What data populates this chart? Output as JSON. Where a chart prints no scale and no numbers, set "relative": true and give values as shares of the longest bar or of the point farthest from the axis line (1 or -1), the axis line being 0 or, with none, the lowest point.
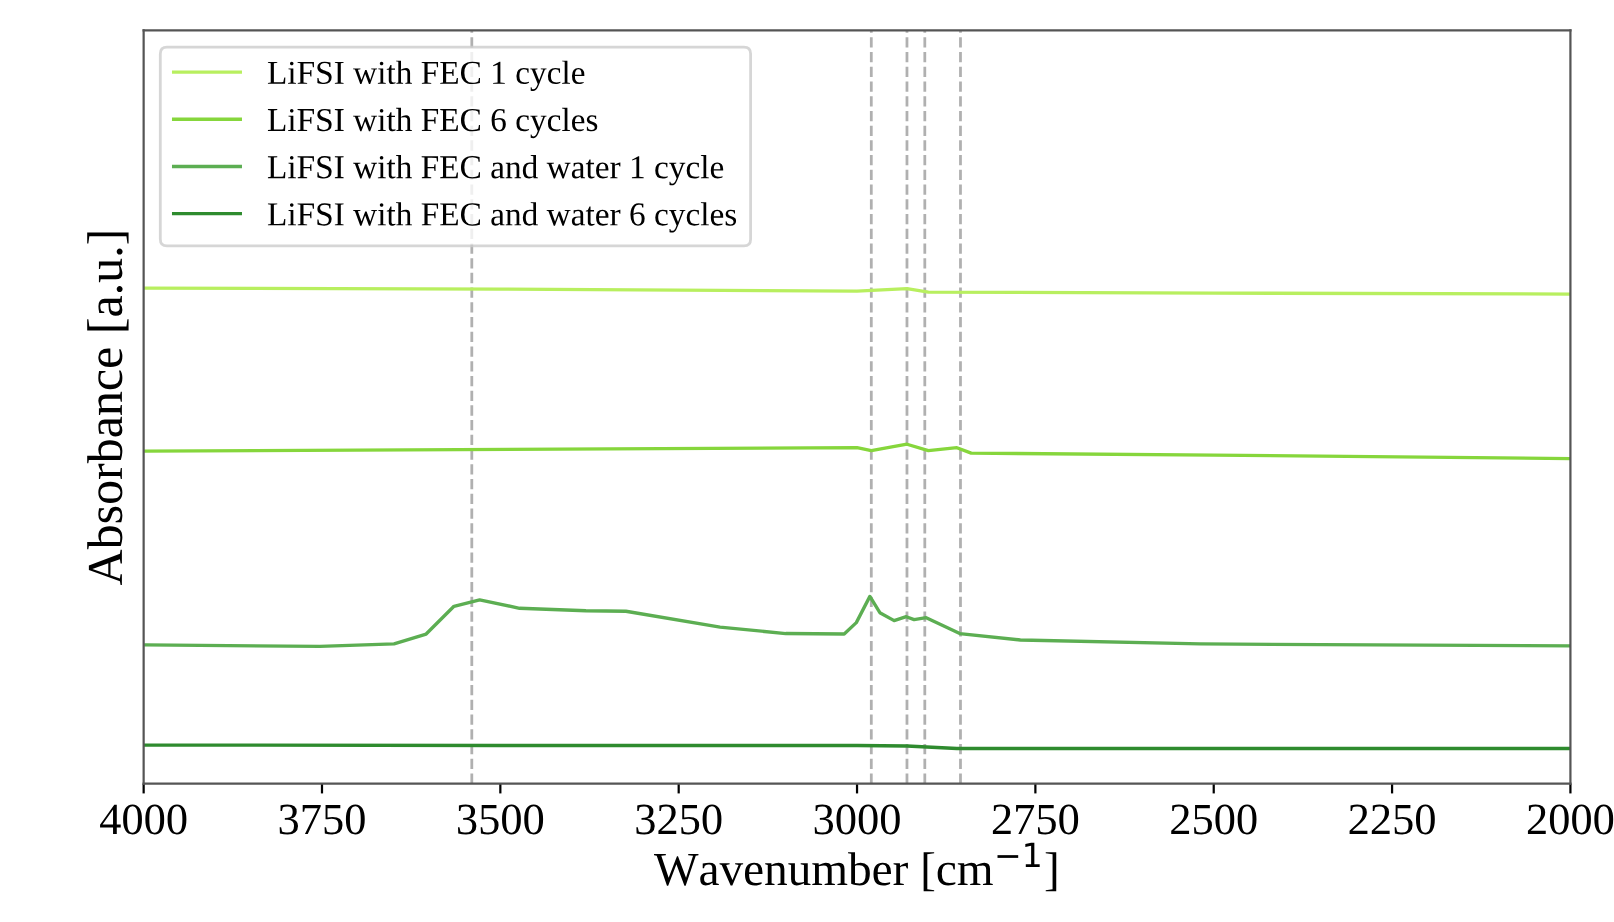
{
  "chart_data": {
    "type": "line",
    "relative": true,
    "xlabel": "Wavenumber [cm$^{−1}$]",
    "ylabel": "Absorbance [a.u.]",
    "xlim": [
      4000,
      2000
    ],
    "xticks": [
      4000,
      3750,
      3500,
      3250,
      3000,
      2750,
      2500,
      2250,
      2000
    ],
    "legend": "top left",
    "grid": false,
    "line_style": "solid",
    "marker": "none",
    "series": [
      {
        "name": "LiFSI with FEC 1 cycle",
        "color": "#b8ef5f",
        "x": [
          4000,
          3500,
          3000,
          2930,
          2900,
          2500,
          2000
        ],
        "values": [
          1.0,
          0.998,
          0.994,
          0.999,
          0.992,
          0.99,
          0.988
        ]
      },
      {
        "name": "LiFSI with FEC 6 cycles",
        "color": "#86d63c",
        "x": [
          4000,
          3000,
          2980,
          2930,
          2900,
          2860,
          2840,
          2500,
          2000
        ],
        "values": [
          0.671,
          0.678,
          0.672,
          0.685,
          0.672,
          0.678,
          0.667,
          0.663,
          0.656
        ]
      },
      {
        "name": "LiFSI with FEC and water 1 cycle",
        "color": "#5cae52",
        "x": [
          3997,
          3753,
          3649,
          3604,
          3565,
          3529,
          3473,
          3380,
          3324,
          3192,
          3100,
          3018,
          3001,
          2982,
          2968,
          2948,
          2931,
          2920,
          2903,
          2856,
          2771,
          2519,
          2000
        ],
        "values": [
          0.28,
          0.277,
          0.282,
          0.302,
          0.358,
          0.371,
          0.354,
          0.349,
          0.348,
          0.316,
          0.303,
          0.302,
          0.325,
          0.378,
          0.345,
          0.329,
          0.337,
          0.331,
          0.335,
          0.303,
          0.29,
          0.282,
          0.278
        ]
      },
      {
        "name": "LiFSI with FEC and water 6 cycles",
        "color": "#2e8b2e",
        "x": [
          4000,
          3500,
          3000,
          2930,
          2860,
          2500,
          2000
        ],
        "values": [
          0.078,
          0.077,
          0.077,
          0.076,
          0.071,
          0.071,
          0.071
        ]
      }
    ],
    "ref_lines": [
      {
        "axis": "x",
        "value": 3540,
        "color": "#b0b0b0",
        "line_style": "dashed"
      },
      {
        "axis": "x",
        "value": 2980,
        "color": "#b0b0b0",
        "line_style": "dashed"
      },
      {
        "axis": "x",
        "value": 2930,
        "color": "#b0b0b0",
        "line_style": "dashed"
      },
      {
        "axis": "x",
        "value": 2905,
        "color": "#b0b0b0",
        "line_style": "dashed"
      },
      {
        "axis": "x",
        "value": 2855,
        "color": "#b0b0b0",
        "line_style": "dashed"
      }
    ]
  }
}
